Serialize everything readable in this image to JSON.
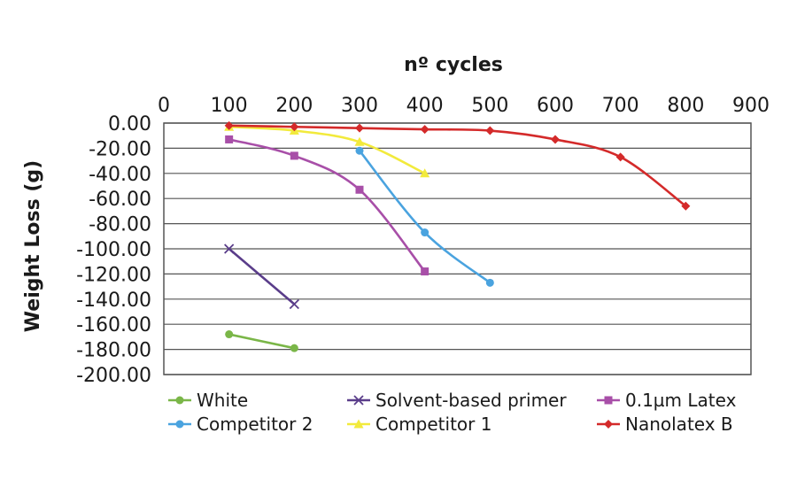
{
  "chart_data": {
    "type": "line",
    "title": "",
    "xlabel": "nº cycles",
    "ylabel": "Weight Loss (g)",
    "xlim": [
      0,
      900
    ],
    "ylim": [
      -200,
      0
    ],
    "x_ticks": [
      "0",
      "100",
      "200",
      "300",
      "400",
      "500",
      "600",
      "700",
      "800",
      "900"
    ],
    "x_tick_values": [
      0,
      100,
      200,
      300,
      400,
      500,
      600,
      700,
      800,
      900
    ],
    "y_ticks": [
      "0.00",
      "-20.00",
      "-40.00",
      "-60.00",
      "-80.00",
      "-100.00",
      "-120.00",
      "-140.00",
      "-160.00",
      "-180.00",
      "-200.00"
    ],
    "y_tick_values": [
      0,
      -20,
      -40,
      -60,
      -80,
      -100,
      -120,
      -140,
      -160,
      -180,
      -200
    ],
    "x_axis_position": "top",
    "grid": true,
    "legend_position": "bottom",
    "series": [
      {
        "name": "White",
        "color": "#7ab648",
        "marker": "circle",
        "x": [
          100,
          200
        ],
        "y": [
          -168,
          -179
        ]
      },
      {
        "name": "Solvent-based primer",
        "color": "#5a3d8a",
        "marker": "x",
        "x": [
          100,
          200
        ],
        "y": [
          -100,
          -144
        ]
      },
      {
        "name": "0.1µm Latex",
        "color": "#a84fa8",
        "marker": "square",
        "x": [
          100,
          200,
          300,
          400
        ],
        "y": [
          -13,
          -26,
          -53,
          -118
        ]
      },
      {
        "name": "Competitor 2",
        "color": "#4aa3df",
        "marker": "circle",
        "x": [
          300,
          400,
          500
        ],
        "y": [
          -22,
          -87,
          -127
        ]
      },
      {
        "name": "Competitor 1",
        "color": "#f2ea3c",
        "marker": "triangle",
        "x": [
          100,
          200,
          300,
          400
        ],
        "y": [
          -3,
          -6,
          -15,
          -40
        ]
      },
      {
        "name": "Nanolatex B",
        "color": "#d42a2a",
        "marker": "diamond",
        "x": [
          100,
          200,
          300,
          400,
          500,
          600,
          700,
          800
        ],
        "y": [
          -2,
          -3,
          -4,
          -5,
          -6,
          -13,
          -27,
          -66
        ]
      }
    ]
  }
}
